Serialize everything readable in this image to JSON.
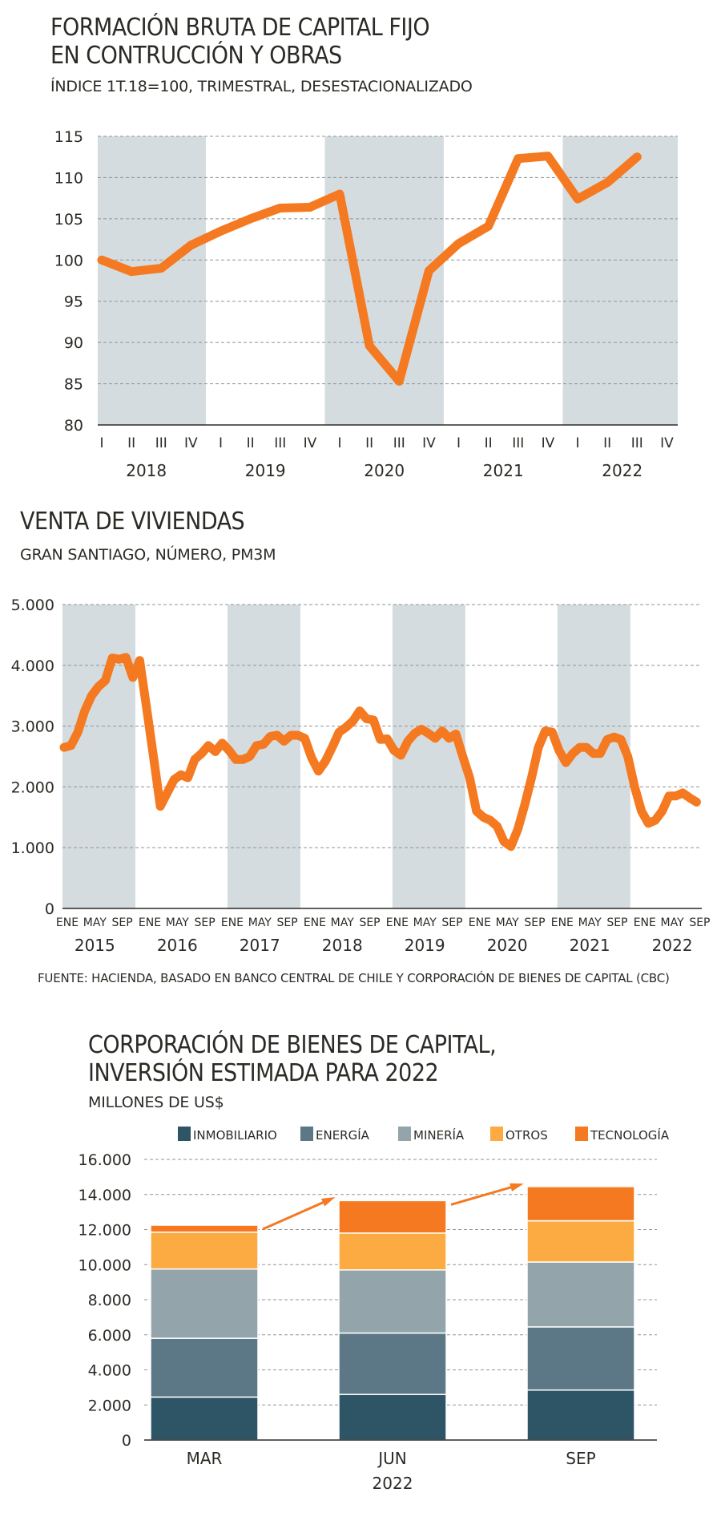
{
  "source_text": "FUENTE: HACIENDA, BASADO EN BANCO CENTRAL DE CHILE Y CORPORACIÓN DE BIENES DE CAPITAL (CBC)",
  "chart_data": [
    {
      "type": "line",
      "title_line1": "FORMACIÓN BRUTA DE CAPITAL FIJO",
      "title_line2": "EN CONTRUCCIÓN Y OBRAS",
      "subtitle": "ÍNDICE 1T.18=100, TRIMESTRAL, DESESTACIONALIZADO",
      "ylim": [
        80,
        115
      ],
      "yticks": [
        80,
        85,
        90,
        95,
        100,
        105,
        110,
        115
      ],
      "grid": true,
      "quarters": [
        "I",
        "II",
        "III",
        "IV"
      ],
      "years": [
        "2018",
        "2019",
        "2020",
        "2021",
        "2022"
      ],
      "shaded_years": [
        "2018",
        "2020",
        "2022"
      ],
      "line_color": "#f47920",
      "shade_color": "#d5dcdf",
      "series": [
        {
          "values": [
            100.0,
            98.6,
            99.0,
            101.8,
            103.5,
            105.0,
            106.3,
            106.4,
            108.0,
            89.6,
            85.3,
            98.7,
            102.0,
            104.1,
            112.3,
            112.6,
            107.4,
            109.4,
            112.5
          ]
        }
      ]
    },
    {
      "type": "line",
      "title": "VENTA DE VIVIENDAS",
      "subtitle": "GRAN SANTIAGO, NÚMERO, PM3M",
      "ylim": [
        0,
        5000
      ],
      "yticks": [
        "0",
        "1.000",
        "2.000",
        "3.000",
        "4.000",
        "5.000"
      ],
      "grid": true,
      "month_ticks": [
        "ENE",
        "MAY",
        "SEP"
      ],
      "years": [
        "2015",
        "2016",
        "2017",
        "2018",
        "2019",
        "2020",
        "2021",
        "2022"
      ],
      "shaded_years": [
        "2015",
        "2017",
        "2019",
        "2021"
      ],
      "line_color": "#f47920",
      "shade_color": "#d5dcdf",
      "series": [
        {
          "values": [
            2650,
            2680,
            2900,
            3250,
            3500,
            3650,
            3750,
            4120,
            4100,
            4130,
            3800,
            4080,
            3300,
            2500,
            1680,
            1900,
            2120,
            2200,
            2150,
            2450,
            2550,
            2680,
            2580,
            2720,
            2600,
            2450,
            2450,
            2500,
            2680,
            2700,
            2830,
            2850,
            2750,
            2850,
            2850,
            2800,
            2480,
            2260,
            2420,
            2650,
            2900,
            2980,
            3080,
            3250,
            3120,
            3100,
            2780,
            2790,
            2600,
            2520,
            2750,
            2880,
            2950,
            2880,
            2800,
            2920,
            2800,
            2870,
            2500,
            2150,
            1600,
            1500,
            1450,
            1350,
            1100,
            1020,
            1300,
            1700,
            2150,
            2650,
            2920,
            2900,
            2600,
            2400,
            2550,
            2650,
            2650,
            2550,
            2550,
            2780,
            2820,
            2780,
            2500,
            2000,
            1600,
            1400,
            1450,
            1600,
            1850,
            1850,
            1900,
            1820,
            1750
          ]
        }
      ]
    },
    {
      "type": "bar",
      "stacked": true,
      "title_line1": "CORPORACIÓN DE BIENES DE CAPITAL,",
      "title_line2": "INVERSIÓN ESTIMADA PARA 2022",
      "subtitle": "MILLONES DE US$",
      "categories": [
        "MAR",
        "JUN",
        "SEP"
      ],
      "xlabel": "2022",
      "ylim": [
        0,
        16000
      ],
      "yticks": [
        "0",
        "2.000",
        "4.000",
        "6.000",
        "8.000",
        "10.000",
        "12.000",
        "14.000",
        "16.000"
      ],
      "grid": true,
      "legend_position": "top",
      "series": [
        {
          "name": "INMOBILIARIO",
          "color": "#2e5566",
          "values": [
            2450,
            2600,
            2850
          ]
        },
        {
          "name": "ENERGÍA",
          "color": "#5c7785",
          "values": [
            3350,
            3500,
            3600
          ]
        },
        {
          "name": "MINERÍA",
          "color": "#93a5ab",
          "values": [
            3950,
            3600,
            3700
          ]
        },
        {
          "name": "OTROS",
          "color": "#fbab41",
          "values": [
            2100,
            2100,
            2350
          ]
        },
        {
          "name": "TECNOLOGÍA",
          "color": "#f47920",
          "values": [
            400,
            1850,
            1950
          ]
        }
      ],
      "arrow_color": "#f47920"
    }
  ]
}
